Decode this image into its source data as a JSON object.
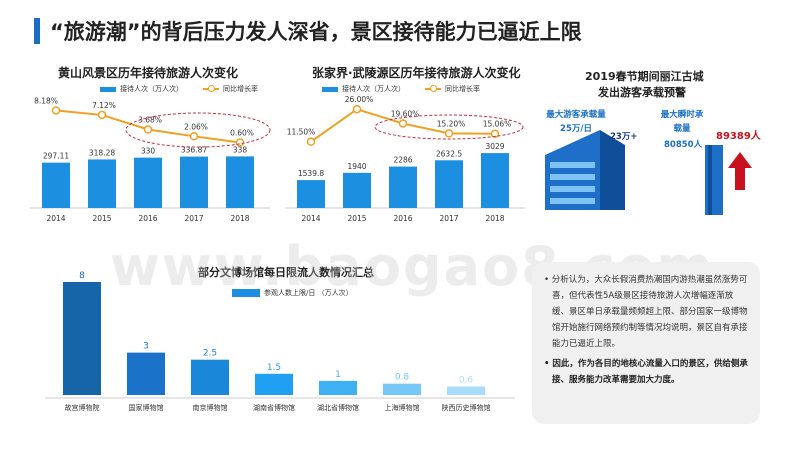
{
  "page": {
    "title": "“旅游潮”的背后压力发人深省，景区接待能力已逼近上限",
    "watermark": "www.baogao8.com"
  },
  "charts": {
    "huangshan": {
      "title": "黄山风景区历年接待旅游人次变化",
      "legend_bar": "接待人次（万人次）",
      "legend_line": "同比增长率"
    },
    "zjj": {
      "title": "张家界·武陵源区历年接待旅游人次变化",
      "legend_bar": "接待人次（万人次）",
      "legend_line": "同比增长率"
    },
    "lijiang": {
      "title_line1": "2019春节期间丽江古城",
      "title_line2": "发出游客承载预警",
      "max_capacity_label": "最大游客承载量25万/日",
      "max_capacity_value": "23万+",
      "max_instant_label": "最大瞬时承载量",
      "max_instant_value": "80850人",
      "peak_value": "89389人"
    },
    "museums": {
      "title": "部分文博场馆每日限流人数情况汇总",
      "legend": "参观人数上限/日 （万人次）"
    }
  },
  "analysis": {
    "point1": "分析认为，大众长假消费热潮国内游热潮虽然涨势可喜，但代表性5A级景区接待旅游人次增幅逐渐放缓、景区单日承载量频频超上限、部分国家一级博物馆开始施行网络预约制等情况均说明，景区自有承接能力已逼近上限。",
    "point2": "因此，作为各目的地核心流量入口的景区，供给侧承接、服务能力改革需要加大力度。"
  },
  "chart_data": [
    {
      "type": "bar",
      "title": "黄山风景区历年接待旅游人次变化",
      "categories": [
        "2014",
        "2015",
        "2016",
        "2017",
        "2018"
      ],
      "series": [
        {
          "name": "接待人次（万人次）",
          "type": "bar",
          "values": [
            297.11,
            318.28,
            330,
            336.87,
            338
          ]
        },
        {
          "name": "同比增长率",
          "type": "line",
          "values": [
            8.18,
            7.12,
            3.68,
            2.06,
            0.6
          ],
          "labels": [
            "8.18%",
            "7.12%",
            "3.68%",
            "2.06%",
            "0.60%"
          ]
        }
      ],
      "bar_labels": [
        "297.11",
        "318.28",
        "330",
        "336.87",
        "338"
      ],
      "colors": {
        "bar": "#1d8fe0",
        "line": "#f0a020",
        "ellipse": "#c0304a"
      }
    },
    {
      "type": "bar",
      "title": "张家界·武陵源区历年接待旅游人次变化",
      "categories": [
        "2014",
        "2015",
        "2016",
        "2017",
        "2018"
      ],
      "series": [
        {
          "name": "接待人次（万人次）",
          "type": "bar",
          "values": [
            1539.8,
            1940,
            2286,
            2632.5,
            3029
          ]
        },
        {
          "name": "同比增长率",
          "type": "line",
          "values": [
            11.5,
            26.0,
            19.6,
            15.2,
            15.06
          ],
          "labels": [
            "11.50%",
            "26.00%",
            "19.60%",
            "15.20%",
            "15.06%"
          ]
        }
      ],
      "bar_labels": [
        "1539.8",
        "1940",
        "2286",
        "2632.5",
        "3029"
      ],
      "colors": {
        "bar": "#1d8fe0",
        "line": "#f0a020",
        "ellipse": "#c0304a"
      }
    },
    {
      "type": "bar",
      "title": "部分文博场馆每日限流人数情况汇总",
      "categories": [
        "故宫博物院",
        "国家博物馆",
        "南京博物馆",
        "湖南省博物馆",
        "湖北省博物馆",
        "上海博物馆",
        "陕西历史博物馆"
      ],
      "series": [
        {
          "name": "参观人数上限/日 （万人次）",
          "values": [
            8,
            3,
            2.5,
            1.5,
            1,
            0.8,
            0.6
          ]
        }
      ],
      "value_labels": [
        "8",
        "3",
        "2.5",
        "1.5",
        "1",
        "0.8",
        "0.6"
      ],
      "colors": [
        "#1565a8",
        "#1a73c8",
        "#1b87d8",
        "#1fa0f0",
        "#3fb0f2",
        "#77c8f6",
        "#a8dcfa"
      ]
    }
  ]
}
